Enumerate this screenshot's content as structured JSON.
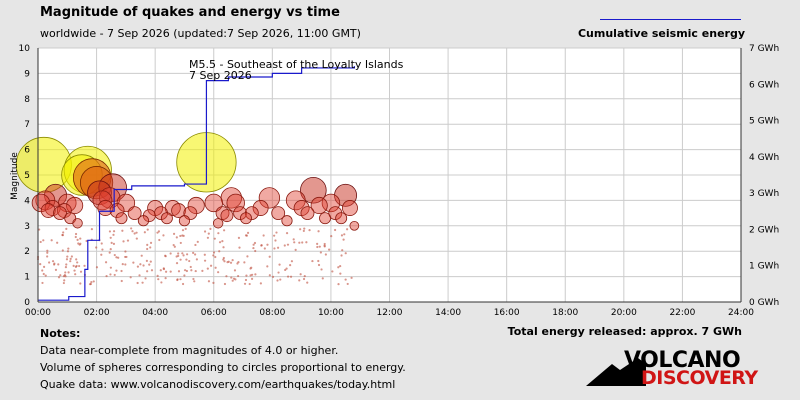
{
  "header": {
    "title": "Magnitude of quakes and energy vs time",
    "subtitle": "worldwide - 7 Sep 2026 (updated:7 Sep 2026, 11:00 GMT)"
  },
  "legend": {
    "label": "Cumulative seismic energy",
    "color": "#1a1acc"
  },
  "notes": {
    "title": "Notes:",
    "lines": [
      "Data near-complete from magnitudes of 4.0 or higher.",
      "Volume of spheres corresponding to circles proportional to energy.",
      "Quake data: www.volcanodiscovery.com/earthquakes/today.html"
    ]
  },
  "total_energy": "Total energy released: approx. 7 GWh",
  "logo": {
    "line1": "VOLCANO",
    "line2": "DISCOVERY"
  },
  "chart_data": {
    "type": "scatter",
    "title": "Magnitude of quakes and energy vs time",
    "ylabel": "Magnitude",
    "y2label": "Cumulative seismic energy",
    "x_ticks": [
      "00:00",
      "02:00",
      "04:00",
      "06:00",
      "08:00",
      "10:00",
      "12:00",
      "14:00",
      "16:00",
      "18:00",
      "20:00",
      "22:00",
      "24:00"
    ],
    "y_ticks": [
      "0",
      "1",
      "2",
      "3",
      "4",
      "5",
      "6",
      "7",
      "8",
      "9",
      "10"
    ],
    "y2_ticks": [
      "0 GWh",
      "1 GWh",
      "2 GWh",
      "3 GWh",
      "4 GWh",
      "5 GWh",
      "6 GWh",
      "7 GWh"
    ],
    "xlim": [
      0,
      24
    ],
    "ylim": [
      0,
      10
    ],
    "y2lim": [
      0,
      7
    ],
    "grid": true,
    "legend_position": "top-right",
    "annotation": {
      "text": [
        "M5.5 - Southeast of the Loyalty Islands",
        "7 Sep 2026"
      ],
      "x": 5.75,
      "y": 5.5
    },
    "quakes": [
      {
        "t": 0.2,
        "m": 5.4
      },
      {
        "t": 0.25,
        "m": 4.0
      },
      {
        "t": 0.1,
        "m": 3.9
      },
      {
        "t": 0.35,
        "m": 3.6
      },
      {
        "t": 0.5,
        "m": 3.7
      },
      {
        "t": 0.6,
        "m": 4.2
      },
      {
        "t": 0.75,
        "m": 3.5
      },
      {
        "t": 0.9,
        "m": 3.6
      },
      {
        "t": 1.0,
        "m": 3.9
      },
      {
        "t": 1.1,
        "m": 3.3
      },
      {
        "t": 1.25,
        "m": 3.8
      },
      {
        "t": 1.35,
        "m": 3.1
      },
      {
        "t": 1.5,
        "m": 5.0
      },
      {
        "t": 1.7,
        "m": 5.2
      },
      {
        "t": 1.85,
        "m": 4.9
      },
      {
        "t": 2.0,
        "m": 4.7
      },
      {
        "t": 2.1,
        "m": 4.3
      },
      {
        "t": 2.2,
        "m": 4.0
      },
      {
        "t": 2.3,
        "m": 3.7
      },
      {
        "t": 2.45,
        "m": 4.1
      },
      {
        "t": 2.55,
        "m": 4.5
      },
      {
        "t": 2.7,
        "m": 3.6
      },
      {
        "t": 2.85,
        "m": 3.3
      },
      {
        "t": 3.0,
        "m": 3.9
      },
      {
        "t": 3.3,
        "m": 3.5
      },
      {
        "t": 3.6,
        "m": 3.2
      },
      {
        "t": 3.8,
        "m": 3.4
      },
      {
        "t": 4.0,
        "m": 3.7
      },
      {
        "t": 4.2,
        "m": 3.5
      },
      {
        "t": 4.4,
        "m": 3.3
      },
      {
        "t": 4.6,
        "m": 3.7
      },
      {
        "t": 4.8,
        "m": 3.6
      },
      {
        "t": 5.0,
        "m": 3.2
      },
      {
        "t": 5.2,
        "m": 3.5
      },
      {
        "t": 5.4,
        "m": 3.8
      },
      {
        "t": 5.75,
        "m": 5.5
      },
      {
        "t": 6.0,
        "m": 3.9
      },
      {
        "t": 6.15,
        "m": 3.1
      },
      {
        "t": 6.3,
        "m": 3.5
      },
      {
        "t": 6.45,
        "m": 3.4
      },
      {
        "t": 6.6,
        "m": 4.1
      },
      {
        "t": 6.75,
        "m": 3.9
      },
      {
        "t": 6.9,
        "m": 3.5
      },
      {
        "t": 7.1,
        "m": 3.3
      },
      {
        "t": 7.3,
        "m": 3.5
      },
      {
        "t": 7.6,
        "m": 3.7
      },
      {
        "t": 7.9,
        "m": 4.1
      },
      {
        "t": 8.2,
        "m": 3.5
      },
      {
        "t": 8.5,
        "m": 3.2
      },
      {
        "t": 8.8,
        "m": 4.0
      },
      {
        "t": 9.0,
        "m": 3.7
      },
      {
        "t": 9.2,
        "m": 3.5
      },
      {
        "t": 9.4,
        "m": 4.4
      },
      {
        "t": 9.6,
        "m": 3.8
      },
      {
        "t": 9.8,
        "m": 3.3
      },
      {
        "t": 10.0,
        "m": 3.9
      },
      {
        "t": 10.15,
        "m": 3.5
      },
      {
        "t": 10.35,
        "m": 3.3
      },
      {
        "t": 10.5,
        "m": 4.2
      },
      {
        "t": 10.65,
        "m": 3.7
      },
      {
        "t": 10.8,
        "m": 3.0
      }
    ],
    "energy": [
      {
        "t": 0.0,
        "e": 0.05
      },
      {
        "t": 1.05,
        "e": 0.15
      },
      {
        "t": 1.6,
        "e": 0.9
      },
      {
        "t": 1.7,
        "e": 1.7
      },
      {
        "t": 2.1,
        "e": 2.5
      },
      {
        "t": 2.6,
        "e": 3.1
      },
      {
        "t": 3.2,
        "e": 3.2
      },
      {
        "t": 5.0,
        "e": 3.25
      },
      {
        "t": 5.75,
        "e": 6.1
      },
      {
        "t": 6.5,
        "e": 6.2
      },
      {
        "t": 8.0,
        "e": 6.3
      },
      {
        "t": 9.0,
        "e": 6.45
      },
      {
        "t": 10.8,
        "e": 6.5
      }
    ]
  }
}
